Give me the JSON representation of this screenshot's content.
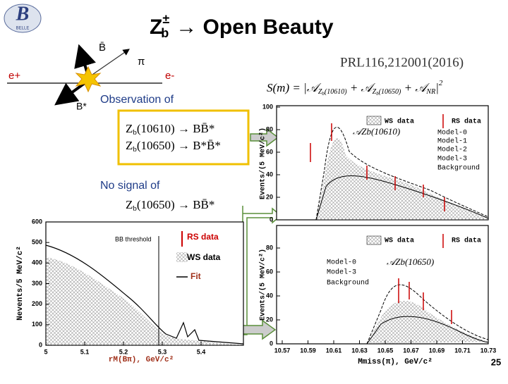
{
  "title": {
    "base": "Z",
    "sup": "±",
    "sub": "b",
    "rest": "→ Open Beauty"
  },
  "logo_text": "BELLE",
  "diagram": {
    "b_bar": "B̄",
    "pion": "π",
    "e_plus": "e+",
    "e_minus": "e-",
    "b_star": "B*"
  },
  "reference": "PRL116,212001(2016)",
  "formula": {
    "lhs": "S(m) = |𝒜",
    "sub1": "Z",
    "sub1b": "b",
    "sub1c": "(10610)",
    "mid": " + 𝒜",
    "sub2": "Z",
    "sub2b": "b",
    "sub2c": "(10650)",
    "mid2": " + 𝒜",
    "sub3": "NR",
    "end": "|",
    "sup": "2"
  },
  "observation": {
    "heading": "Observation of",
    "lines": [
      {
        "pre": "Z",
        "sub": "b",
        "post": "(10610) → BB̄*"
      },
      {
        "pre": "Z",
        "sub": "b",
        "post": "(10650) → B*B̄*"
      }
    ]
  },
  "no_signal": {
    "heading": "No signal of",
    "line": {
      "pre": "Z",
      "sub": "b",
      "post": "(10650) → BB̄*"
    }
  },
  "plot_left": {
    "y_label": "Nevents/5 MeV/c²",
    "x_label": "rM(Bπ), GeV/c²",
    "yticks": [
      0,
      100,
      200,
      300,
      400,
      500,
      600
    ],
    "xticks": [
      5,
      5.1,
      5.2,
      5.3,
      5.4
    ],
    "annotation": "BB threshold",
    "legend": [
      "RS data",
      "WS data",
      "Fit"
    ]
  },
  "plot_right_top": {
    "y_label": "Events/(5 MeV/c²)",
    "yticks": [
      0,
      20,
      40,
      60,
      80,
      100
    ],
    "legend": [
      "WS data",
      "RS data",
      "Model-0",
      "Model-1",
      "Model-2",
      "Model-3",
      "Background"
    ],
    "annotation": "𝒜Zb(10610)"
  },
  "plot_right_bottom": {
    "y_label": "Events/(5 MeV/c²)",
    "yticks": [
      0,
      20,
      40,
      60,
      80
    ],
    "xticks": [
      10.57,
      10.59,
      10.61,
      10.63,
      10.65,
      10.67,
      10.69,
      10.71,
      10.73
    ],
    "x_label": "Mmiss(π), GeV/c²",
    "legend": [
      "WS data",
      "RS data",
      "Model-0",
      "Model-3",
      "Background"
    ],
    "annotation": "𝒜Zb(10650)"
  },
  "page_number": "25"
}
